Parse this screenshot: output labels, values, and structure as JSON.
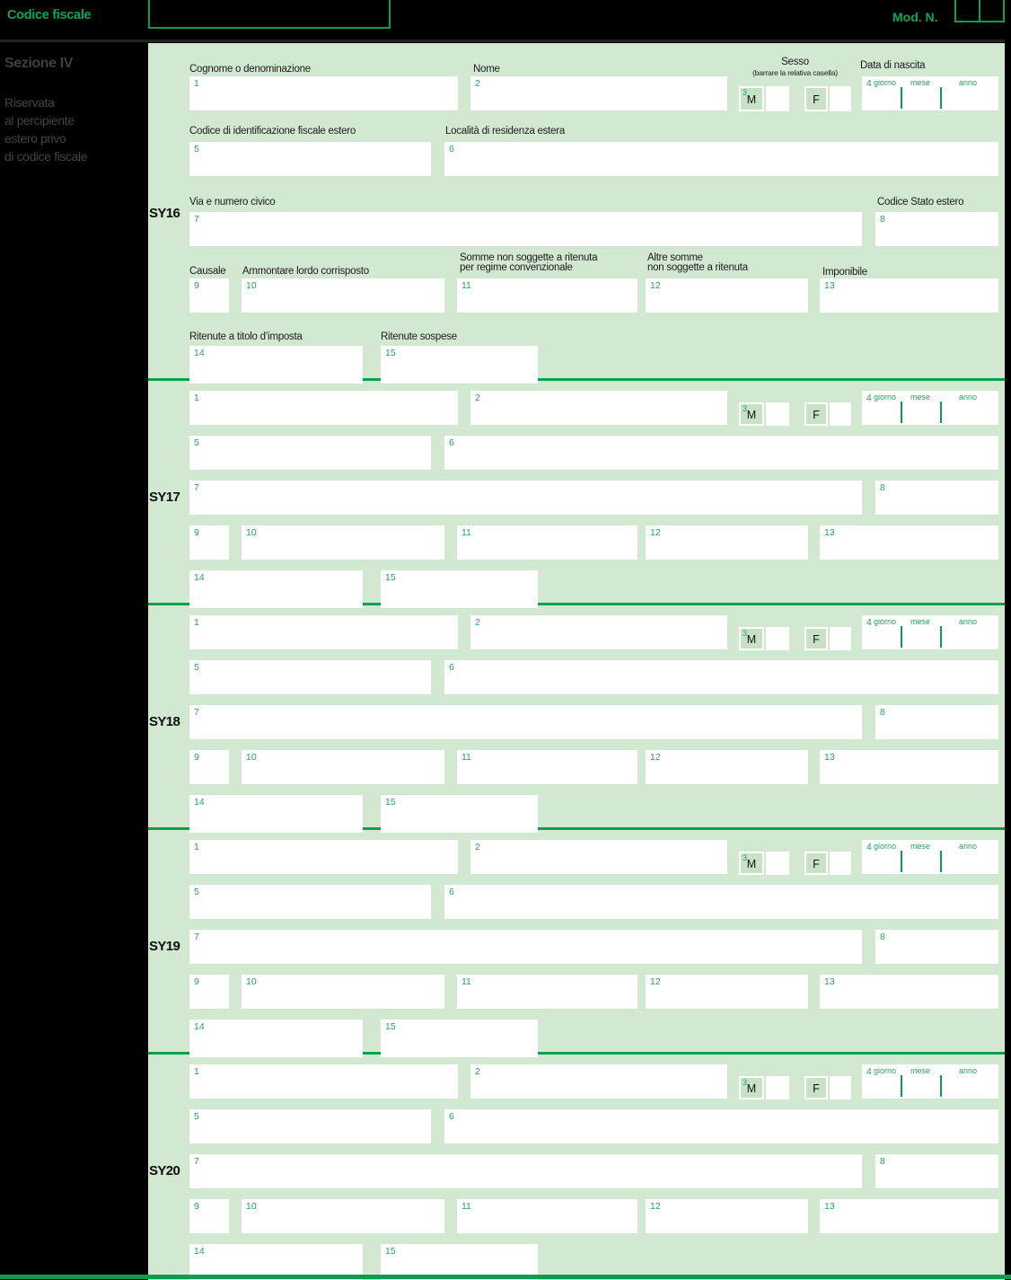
{
  "header": {
    "codice_fiscale_label": "Codice fiscale",
    "mod_n_label": "Mod. N."
  },
  "sidebar": {
    "section_title": "Sezione IV",
    "description_lines": [
      "Riservata",
      "al percipiente",
      "estero privo",
      "di codice fiscale"
    ]
  },
  "colors": {
    "accent_green": "#0a9f50",
    "page_green": "#d3e8d1",
    "text_green": "#27a05e",
    "header_green": "#0ca653",
    "cell_green": "#c7e2c6",
    "label_dark": "#1b1b1b"
  },
  "form": {
    "section_ids": [
      "SY16",
      "SY17",
      "SY18",
      "SY19",
      "SY20"
    ],
    "labels": {
      "cognome": "Cognome o denominazione",
      "nome": "Nome",
      "sesso": "Sesso",
      "sesso_sub": "(barrare la relativa casella)",
      "m": "M",
      "f": "F",
      "data_nascita": "Data di nascita",
      "giorno": "giorno",
      "mese": "mese",
      "anno": "anno",
      "codice_id_estero": "Codice di identificazione fiscale estero",
      "localita": "Località di residenza estera",
      "via": "Via e numero civico",
      "codice_stato": "Codice Stato estero",
      "causale": "Causale",
      "ammontare": "Ammontare lordo corrisposto",
      "somme_1": "Somme non soggette a ritenuta",
      "somme_2": "per regime convenzionale",
      "altre_1": "Altre somme",
      "altre_2": "non soggette a ritenuta",
      "imponibile": "Imponibile",
      "ritenute_imposta": "Ritenute a titolo d’imposta",
      "ritenute_sospese": "Ritenute sospese"
    },
    "nums": {
      "f1": "1",
      "f2": "2",
      "f5": "5",
      "f6": "6",
      "f7": "7",
      "f8": "8",
      "f9": "9",
      "f10": "10",
      "f11": "11",
      "f12": "12",
      "f13": "13",
      "f14": "14",
      "f15": "15",
      "sesso": "3",
      "data_nascita": "4"
    }
  }
}
